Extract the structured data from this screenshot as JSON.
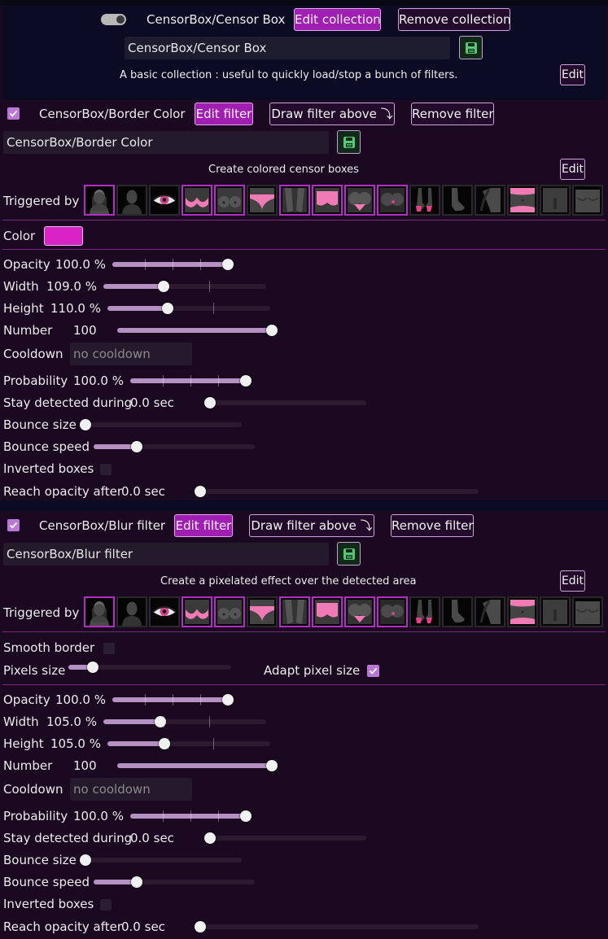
{
  "collection": {
    "name": "CensorBox/Censor Box",
    "edit_label": "Edit collection",
    "remove_label": "Remove collection",
    "name_input_value": "CensorBox/Censor Box",
    "description": "A basic collection : useful to quickly load/stop a bunch of filters.",
    "desc_edit_label": "Edit",
    "enabled": true
  },
  "filters": [
    {
      "enabled": true,
      "name": "CensorBox/Border Color",
      "edit_label": "Edit filter",
      "draw_label": "Draw filter above ⤵",
      "remove_label": "Remove filter",
      "name_input_value": "CensorBox/Border Color",
      "description": "Create colored censor boxes",
      "desc_edit_label": "Edit",
      "triggered_by_label": "Triggered by",
      "triggers": [
        {
          "icon": "covered-face-icon",
          "selected": true
        },
        {
          "icon": "exposed-face-icon",
          "selected": false
        },
        {
          "icon": "eye-icon",
          "selected": false
        },
        {
          "icon": "covered-breast-icon",
          "selected": true
        },
        {
          "icon": "exposed-breast-icon",
          "selected": true
        },
        {
          "icon": "covered-genitalia-icon",
          "selected": false
        },
        {
          "icon": "exposed-genitalia-icon",
          "selected": true
        },
        {
          "icon": "covered-buttocks-icon",
          "selected": true
        },
        {
          "icon": "covered-anus-icon",
          "selected": true
        },
        {
          "icon": "exposed-buttocks-icon",
          "selected": true
        },
        {
          "icon": "covered-feet-icon",
          "selected": false
        },
        {
          "icon": "exposed-feet-icon",
          "selected": false
        },
        {
          "icon": "exposed-armpits-icon",
          "selected": false
        },
        {
          "icon": "covered-belly-icon",
          "selected": false
        },
        {
          "icon": "exposed-male-genitalia-icon",
          "selected": false
        },
        {
          "icon": "exposed-male-chest-icon",
          "selected": false
        }
      ],
      "color_label": "Color",
      "color_value": "#d824c4",
      "opacity": {
        "label": "Opacity",
        "value": "100.0 %",
        "level": 1.0
      },
      "width": {
        "label": "Width",
        "value": "109.0 %",
        "level": 0.37
      },
      "height": {
        "label": "Height",
        "value": "110.0 %",
        "level": 0.37
      },
      "number": {
        "label": "Number",
        "value": "100",
        "level": 1.0
      },
      "cooldown": {
        "label": "Cooldown",
        "placeholder": "no cooldown"
      },
      "probability": {
        "label": "Probability",
        "value": "100.0 %",
        "level": 1.0
      },
      "stay": {
        "label": "Stay detected during",
        "value": "0.0 sec",
        "level": 0.0
      },
      "bounce_size": {
        "label": "Bounce size",
        "level": 0.0
      },
      "bounce_speed": {
        "label": "Bounce speed",
        "level": 0.27
      },
      "inverted": {
        "label": "Inverted boxes",
        "checked": false
      },
      "reach": {
        "label": "Reach opacity after",
        "value": "0.0 sec",
        "level": 0.0
      }
    },
    {
      "enabled": true,
      "name": "CensorBox/Blur filter",
      "edit_label": "Edit filter",
      "draw_label": "Draw filter above ⤵",
      "remove_label": "Remove filter",
      "name_input_value": "CensorBox/Blur filter",
      "description": "Create a pixelated effect over the detected area",
      "desc_edit_label": "Edit",
      "triggered_by_label": "Triggered by",
      "smooth_border": {
        "label": "Smooth border",
        "checked": false
      },
      "pixels_size": {
        "label": "Pixels size",
        "level": 0.05
      },
      "adapt_pixel": {
        "label": "Adapt pixel size",
        "checked": true
      },
      "opacity": {
        "label": "Opacity",
        "value": "100.0 %",
        "level": 1.0
      },
      "width": {
        "label": "Width",
        "value": "105.0 %",
        "level": 0.35
      },
      "height": {
        "label": "Height",
        "value": "105.0 %",
        "level": 0.35
      },
      "number": {
        "label": "Number",
        "value": "100",
        "level": 1.0
      },
      "cooldown": {
        "label": "Cooldown",
        "placeholder": "no cooldown"
      },
      "probability": {
        "label": "Probability",
        "value": "100.0 %",
        "level": 1.0
      },
      "stay": {
        "label": "Stay detected during",
        "value": "0.0 sec",
        "level": 0.0
      },
      "bounce_size": {
        "label": "Bounce size",
        "level": 0.0
      },
      "bounce_speed": {
        "label": "Bounce speed",
        "level": 0.27
      },
      "inverted": {
        "label": "Inverted boxes",
        "checked": false
      },
      "reach": {
        "label": "Reach opacity after",
        "value": "0.0 sec",
        "level": 0.0
      }
    }
  ],
  "colors": {
    "accent": "#a11eb3",
    "panel_bg": "#1a0920",
    "collection_bg": "#0c0b24",
    "slider_fill": "#b590c2",
    "separator": "#7a2a7f"
  }
}
